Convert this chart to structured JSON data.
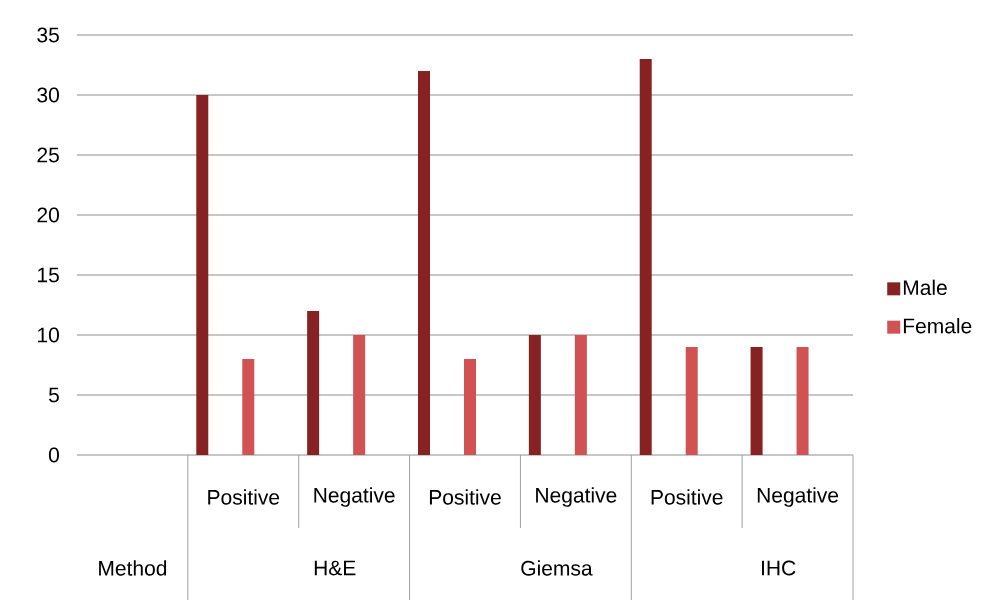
{
  "chart_data": {
    "type": "bar",
    "categories": [
      null,
      "Positive",
      "Negative",
      "Positive",
      "Negative",
      "Positive",
      "Negative"
    ],
    "series": [
      {
        "name": "Male",
        "color": "#862222",
        "values": [
          null,
          30,
          12,
          32,
          10,
          33,
          9
        ]
      },
      {
        "name": "Female",
        "color": "#d05252",
        "values": [
          null,
          8,
          10,
          8,
          10,
          9,
          9
        ]
      }
    ],
    "annotations": [
      "Method",
      "H&E",
      "Giemsa",
      "IHC"
    ],
    "ylim": [
      0,
      35
    ],
    "yticks": [
      0,
      5,
      10,
      15,
      20,
      25,
      30,
      35
    ],
    "grid": "y",
    "legend": "right"
  }
}
